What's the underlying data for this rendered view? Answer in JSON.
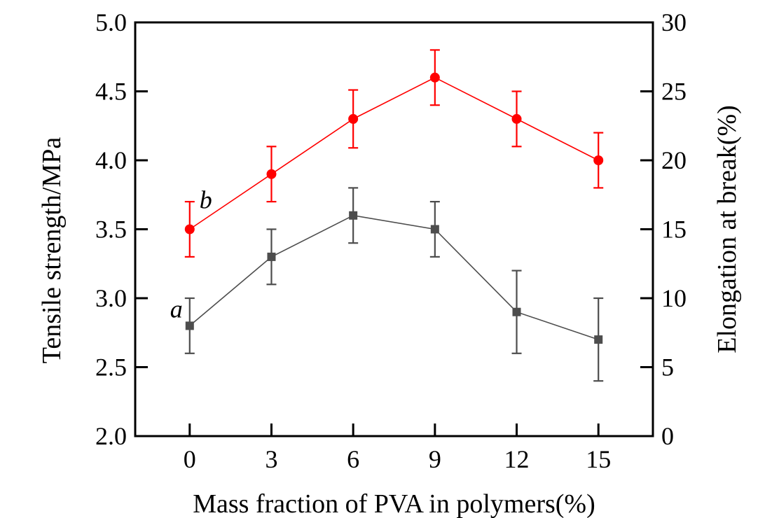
{
  "chart_data": {
    "type": "line",
    "title": "",
    "xlabel": "Mass fraction of PVA in polymers(%)",
    "ylabel_left": "Tensile strength/MPa",
    "ylabel_right": "Elongation at break(%)",
    "x": [
      0,
      3,
      6,
      9,
      12,
      15
    ],
    "x_ticks": [
      "0",
      "3",
      "6",
      "9",
      "12",
      "15"
    ],
    "xlim": [
      -2,
      17
    ],
    "ylim_left": [
      2.0,
      5.0
    ],
    "ylim_right": [
      0,
      30
    ],
    "yticks_left": [
      "2.0",
      "2.5",
      "3.0",
      "3.5",
      "4.0",
      "4.5",
      "5.0"
    ],
    "yticks_right": [
      "0",
      "5",
      "10",
      "15",
      "20",
      "25",
      "30"
    ],
    "grid": false,
    "series": [
      {
        "name": "a",
        "axis": "left",
        "marker": "square",
        "color": "#4d4d4d",
        "values": [
          2.8,
          3.3,
          3.6,
          3.5,
          2.9,
          2.7
        ],
        "errors": [
          0.2,
          0.2,
          0.2,
          0.2,
          0.3,
          0.3
        ]
      },
      {
        "name": "b",
        "axis": "right",
        "marker": "circle",
        "color": "#ff0000",
        "values": [
          15,
          19,
          23,
          26,
          23,
          20
        ],
        "errors": [
          2,
          2,
          2.1,
          2,
          2,
          2
        ]
      }
    ],
    "annotations": [
      {
        "text": "a",
        "series": "a"
      },
      {
        "text": "b",
        "series": "b"
      }
    ]
  }
}
